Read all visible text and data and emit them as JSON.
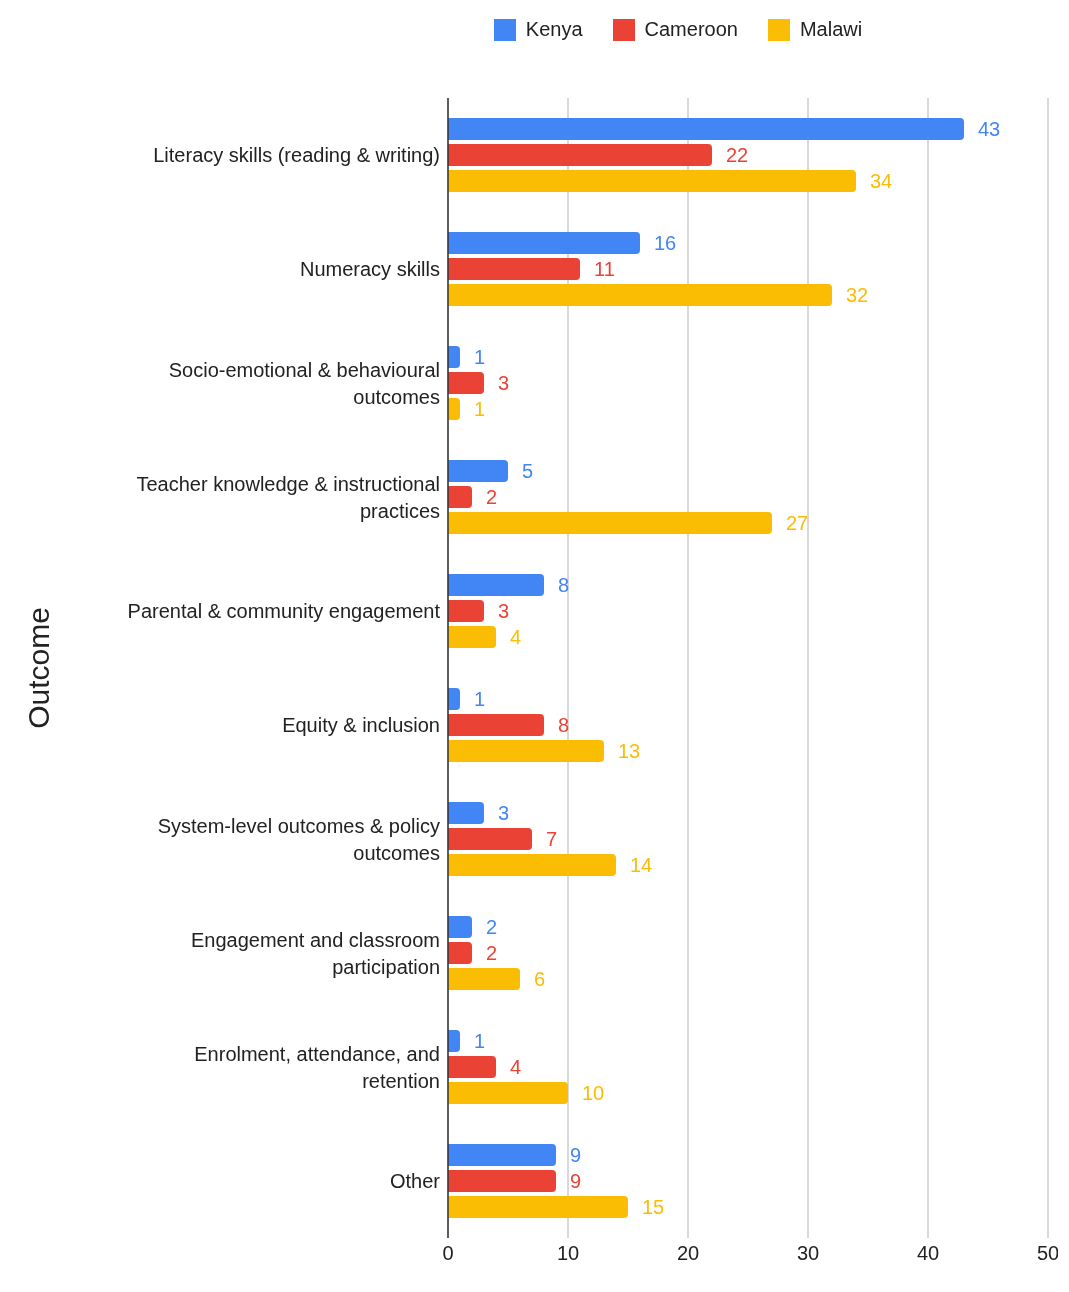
{
  "chart_data": {
    "type": "bar",
    "orientation": "horizontal",
    "ylabel": "Outcome",
    "categories": [
      "Literacy skills (reading & writing)",
      "Numeracy skills",
      "Socio-emotional & behavioural outcomes",
      "Teacher knowledge & instructional practices",
      "Parental & community engagement",
      "Equity & inclusion",
      "System-level outcomes & policy outcomes",
      "Engagement and classroom participation",
      "Enrolment, attendance, and retention",
      "Other"
    ],
    "series": [
      {
        "name": "Kenya",
        "color": "#4285f4",
        "values": [
          43,
          16,
          1,
          5,
          8,
          1,
          3,
          2,
          1,
          9
        ]
      },
      {
        "name": "Cameroon",
        "color": "#ea4335",
        "values": [
          22,
          11,
          3,
          2,
          3,
          8,
          7,
          2,
          4,
          9
        ]
      },
      {
        "name": "Malawi",
        "color": "#fbbc04",
        "values": [
          34,
          32,
          1,
          27,
          4,
          13,
          14,
          6,
          10,
          15
        ]
      }
    ],
    "xlim": [
      0,
      50
    ],
    "xticks": [
      0,
      10,
      20,
      30,
      40,
      50
    ],
    "grid": "x",
    "legend": "top",
    "data_labels": true
  }
}
